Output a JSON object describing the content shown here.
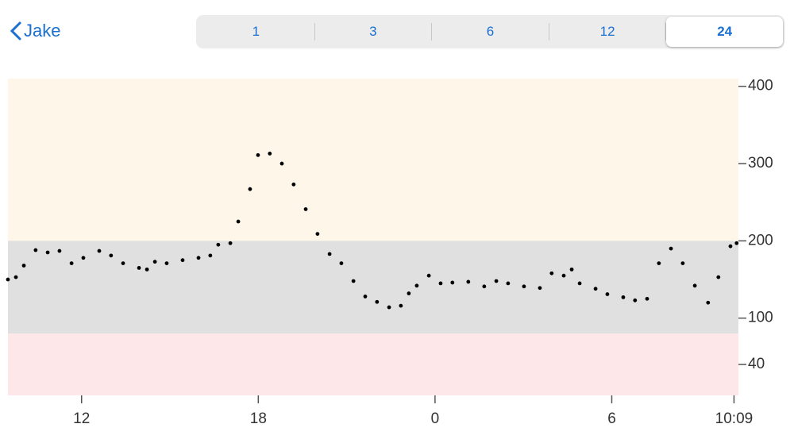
{
  "nav": {
    "back_label": "Jake"
  },
  "segmented_control": {
    "segments": [
      "1",
      "3",
      "6",
      "12",
      "24"
    ],
    "selected": 4
  },
  "chart_data": {
    "type": "scatter",
    "color": "#000000",
    "x": [
      9.5,
      9.77,
      10.04,
      10.44,
      10.85,
      11.25,
      11.66,
      12.06,
      12.6,
      13.0,
      13.41,
      13.95,
      14.22,
      14.49,
      14.89,
      15.43,
      15.97,
      16.37,
      16.64,
      17.05,
      17.32,
      17.72,
      17.99,
      18.39,
      18.8,
      19.2,
      19.61,
      20.01,
      20.42,
      20.82,
      21.23,
      21.63,
      22.03,
      22.44,
      22.84,
      23.11,
      23.38,
      23.79,
      24.19,
      24.59,
      25.13,
      25.67,
      26.08,
      26.48,
      27.02,
      27.56,
      27.96,
      28.37,
      28.64,
      28.91,
      29.45,
      29.85,
      30.39,
      30.79,
      31.2,
      31.6,
      32.01,
      32.41,
      32.82,
      33.27,
      33.62,
      34.03,
      34.24
    ],
    "values": [
      150,
      153,
      168,
      188,
      185,
      187,
      171,
      178,
      187,
      181,
      171,
      165,
      163,
      173,
      171,
      175,
      178,
      181,
      195,
      197,
      225,
      267,
      311,
      313,
      300,
      273,
      241,
      209,
      183,
      171,
      148,
      128,
      121,
      114,
      116,
      132,
      142,
      155,
      145,
      146,
      147,
      141,
      148,
      145,
      141,
      139,
      158,
      155,
      163,
      145,
      138,
      131,
      127,
      123,
      125,
      171,
      190,
      171,
      142,
      120,
      153,
      193,
      197
    ],
    "xlim": [
      9.5,
      34.3
    ],
    "ylim": [
      0,
      410
    ],
    "xticks": [
      12,
      18,
      {
        "value": 24,
        "label": "0"
      },
      {
        "value": 30,
        "label": "6"
      },
      {
        "value": 34.15,
        "label": "10:09"
      }
    ],
    "yticks": [
      40,
      100,
      200,
      300,
      400
    ],
    "target_range": [
      80,
      200
    ],
    "band_colors": {
      "high": "#fdf6e9",
      "target": "#e0e0e0",
      "low": "#fde7e9"
    }
  }
}
